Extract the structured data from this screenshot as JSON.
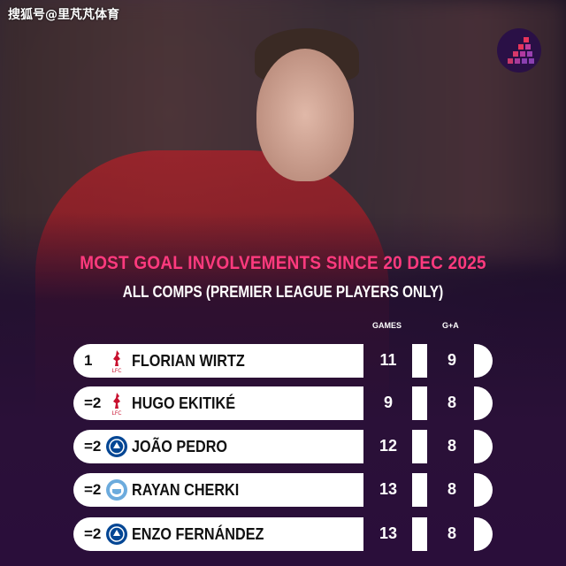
{
  "watermark": "搜狐号@里芃芃体育",
  "title": "MOST GOAL INVOLVEMENTS SINCE 20 DEC 2025",
  "subtitle": "ALL COMPS (PREMIER LEAGUE PLAYERS ONLY)",
  "columns": {
    "games": "GAMES",
    "ga": "G+A"
  },
  "colors": {
    "title": "#ff3a7e",
    "liverpool": "#c8102e",
    "chelsea": "#034694",
    "mancity": "#6cabdd"
  },
  "rows": [
    {
      "rank": "1",
      "name": "FLORIAN WIRTZ",
      "club_icon": "liverpool-crest-icon",
      "crest_text": "LFC",
      "games": "11",
      "ga": "9"
    },
    {
      "rank": "=2",
      "name": "HUGO EKITIKÉ",
      "club_icon": "liverpool-crest-icon",
      "crest_text": "LFC",
      "games": "9",
      "ga": "8"
    },
    {
      "rank": "=2",
      "name": "JOÃO PEDRO",
      "club_icon": "chelsea-crest-icon",
      "games": "12",
      "ga": "8"
    },
    {
      "rank": "=2",
      "name": "RAYAN CHERKI",
      "club_icon": "man-city-crest-icon",
      "games": "13",
      "ga": "8"
    },
    {
      "rank": "=2",
      "name": "ENZO FERNÁNDEZ",
      "club_icon": "chelsea-crest-icon",
      "games": "13",
      "ga": "8"
    }
  ]
}
